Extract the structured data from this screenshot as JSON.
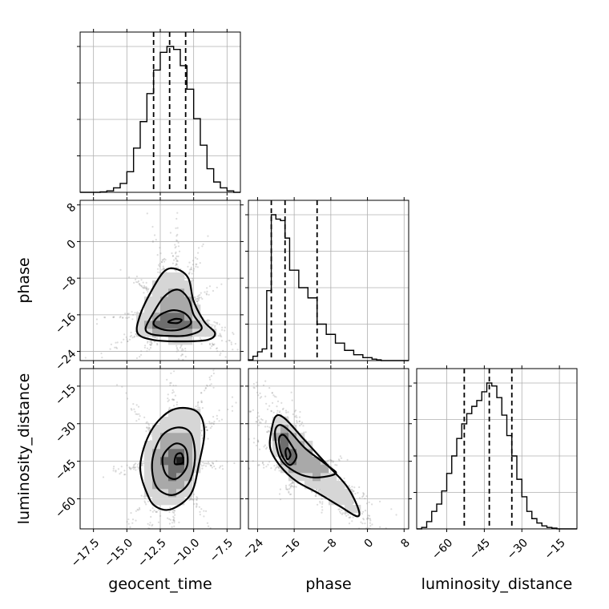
{
  "chart_data": {
    "type": "corner",
    "parameters": [
      "geocent_time",
      "phase",
      "luminosity_distance"
    ],
    "ranges": {
      "geocent_time": [
        -18.5,
        -6.5
      ],
      "phase": [
        -26,
        9
      ],
      "luminosity_distance": [
        -72,
        -8
      ]
    },
    "ticks": {
      "geocent_time": [
        -17.5,
        -15.0,
        -12.5,
        -10.0,
        -7.5
      ],
      "phase": [
        -24,
        -16,
        -8,
        0,
        8
      ],
      "luminosity_distance": [
        -60,
        -45,
        -30,
        -15
      ]
    },
    "tick_labels": {
      "geocent_time": [
        "−17.5",
        "−15.0",
        "−12.5",
        "−10.0",
        "−7.5"
      ],
      "phase": [
        "−24",
        "−16",
        "−8",
        "0",
        "8"
      ],
      "luminosity_distance": [
        "−60",
        "−45",
        "−30",
        "−15"
      ]
    },
    "quantiles": {
      "geocent_time": [
        -13.0,
        -11.8,
        -10.6
      ],
      "phase": [
        -21.0,
        -18.0,
        -11.0
      ],
      "luminosity_distance": [
        -53,
        -43,
        -34
      ]
    },
    "histograms": {
      "geocent_time": {
        "edges": [
          -18.5,
          -18.0,
          -17.5,
          -17.0,
          -16.5,
          -16.0,
          -15.5,
          -15.0,
          -14.5,
          -14.0,
          -13.5,
          -13.0,
          -12.5,
          -12.0,
          -11.5,
          -11.0,
          -10.5,
          -10.0,
          -9.5,
          -9.0,
          -8.5,
          -8.0,
          -7.5,
          -7.0,
          -6.5
        ],
        "counts": [
          0,
          0,
          0,
          0.003,
          0.01,
          0.03,
          0.06,
          0.14,
          0.3,
          0.48,
          0.67,
          0.83,
          0.95,
          0.99,
          0.97,
          0.86,
          0.7,
          0.5,
          0.32,
          0.16,
          0.07,
          0.03,
          0.01,
          0
        ]
      },
      "phase": {
        "edges": [
          -26,
          -25,
          -24,
          -23,
          -22,
          -21,
          -20,
          -19,
          -18,
          -17,
          -16,
          -15,
          -14,
          -13,
          -12,
          -11,
          -10,
          -9,
          -8,
          -7,
          -6,
          -5,
          -4,
          -3,
          -2,
          -1,
          0,
          1,
          2,
          3,
          4,
          5,
          6,
          7,
          8,
          9
        ],
        "counts": [
          0.005,
          0.03,
          0.06,
          0.08,
          0.48,
          1.0,
          0.97,
          0.96,
          0.84,
          0.62,
          0.62,
          0.5,
          0.5,
          0.43,
          0.43,
          0.25,
          0.25,
          0.18,
          0.18,
          0.12,
          0.12,
          0.07,
          0.07,
          0.04,
          0.04,
          0.02,
          0.02,
          0.01,
          0.005,
          0,
          0,
          0,
          0,
          0,
          0
        ]
      },
      "luminosity_distance": {
        "edges": [
          -72,
          -70,
          -68,
          -66,
          -64,
          -62,
          -60,
          -58,
          -56,
          -54,
          -52,
          -50,
          -48,
          -46,
          -44,
          -42,
          -40,
          -38,
          -36,
          -34,
          -32,
          -30,
          -28,
          -26,
          -24,
          -22,
          -20,
          -18,
          -16,
          -14,
          -12,
          -10,
          -8
        ],
        "counts": [
          0,
          0.01,
          0.05,
          0.12,
          0.17,
          0.26,
          0.38,
          0.5,
          0.62,
          0.72,
          0.79,
          0.84,
          0.88,
          0.94,
          1.0,
          0.98,
          0.9,
          0.78,
          0.64,
          0.5,
          0.34,
          0.22,
          0.12,
          0.07,
          0.04,
          0.02,
          0.01,
          0.005,
          0,
          0,
          0,
          0
        ]
      }
    },
    "joint": [
      {
        "x": "geocent_time",
        "y": "phase",
        "center": [
          -11.8,
          -17.5
        ],
        "contours": [
          [
            [
              -14.2,
              -20.0
            ],
            [
              -14.0,
              -16.0
            ],
            [
              -13.2,
              -11.0
            ],
            [
              -12.2,
              -6.5
            ],
            [
              -11.3,
              -6.0
            ],
            [
              -10.4,
              -8.0
            ],
            [
              -10.0,
              -13.0
            ],
            [
              -9.2,
              -17.5
            ],
            [
              -8.4,
              -20.0
            ],
            [
              -9.0,
              -21.5
            ],
            [
              -11.0,
              -21.8
            ],
            [
              -13.0,
              -21.5
            ]
          ],
          [
            [
              -13.6,
              -19.0
            ],
            [
              -13.1,
              -16.0
            ],
            [
              -12.2,
              -12.0
            ],
            [
              -11.2,
              -10.5
            ],
            [
              -10.4,
              -12.5
            ],
            [
              -10.0,
              -16.0
            ],
            [
              -9.4,
              -19.0
            ],
            [
              -10.5,
              -20.5
            ],
            [
              -12.0,
              -20.6
            ],
            [
              -13.2,
              -20.2
            ]
          ],
          [
            [
              -13.0,
              -18.0
            ],
            [
              -12.5,
              -16.0
            ],
            [
              -11.5,
              -15.0
            ],
            [
              -10.6,
              -15.8
            ],
            [
              -10.2,
              -17.8
            ],
            [
              -11.0,
              -19.2
            ],
            [
              -12.2,
              -19.3
            ]
          ],
          [
            [
              -11.9,
              -17.6
            ],
            [
              -11.4,
              -16.9
            ],
            [
              -10.9,
              -17.1
            ],
            [
              -11.2,
              -17.8
            ]
          ]
        ]
      },
      {
        "x": "geocent_time",
        "y": "luminosity_distance",
        "center": [
          -11.2,
          -44
        ],
        "contours": [
          [
            [
              -13.4,
              -59.0
            ],
            [
              -14.0,
              -47.0
            ],
            [
              -13.2,
              -33.0
            ],
            [
              -11.6,
              -24.5
            ],
            [
              -9.8,
              -25.0
            ],
            [
              -9.2,
              -33.0
            ],
            [
              -9.6,
              -46.0
            ],
            [
              -10.2,
              -58.0
            ],
            [
              -11.6,
              -64.0
            ],
            [
              -12.7,
              -63.5
            ]
          ],
          [
            [
              -12.8,
              -55.0
            ],
            [
              -13.1,
              -45.0
            ],
            [
              -12.4,
              -35.0
            ],
            [
              -11.2,
              -31.5
            ],
            [
              -10.2,
              -34.0
            ],
            [
              -9.9,
              -44.0
            ],
            [
              -10.4,
              -54.0
            ],
            [
              -11.6,
              -58.5
            ]
          ],
          [
            [
              -12.1,
              -50.0
            ],
            [
              -12.3,
              -43.0
            ],
            [
              -11.4,
              -38.0
            ],
            [
              -10.6,
              -40.0
            ],
            [
              -10.5,
              -47.0
            ],
            [
              -11.3,
              -52.0
            ]
          ],
          [
            [
              -11.4,
              -46.0
            ],
            [
              -11.3,
              -42.5
            ],
            [
              -10.9,
              -42.0
            ],
            [
              -10.8,
              -45.5
            ]
          ]
        ]
      },
      {
        "x": "phase",
        "y": "luminosity_distance",
        "center": [
          -17.5,
          -42
        ],
        "contours": [
          [
            [
              -21.0,
              -33.0
            ],
            [
              -20.0,
              -27.0
            ],
            [
              -18.0,
              -28.0
            ],
            [
              -14.0,
              -36.0
            ],
            [
              -9.0,
              -46.0
            ],
            [
              -4.5,
              -55.0
            ],
            [
              -2.0,
              -64.0
            ],
            [
              -2.3,
              -67.0
            ],
            [
              -6.0,
              -63.0
            ],
            [
              -11.0,
              -57.5
            ],
            [
              -15.5,
              -53.0
            ],
            [
              -19.0,
              -47.0
            ],
            [
              -21.2,
              -40.0
            ]
          ],
          [
            [
              -20.2,
              -34.0
            ],
            [
              -19.2,
              -30.5
            ],
            [
              -17.0,
              -33.0
            ],
            [
              -13.5,
              -40.0
            ],
            [
              -8.5,
              -47.0
            ],
            [
              -7.0,
              -50.0
            ],
            [
              -11.5,
              -51.5
            ],
            [
              -15.5,
              -49.5
            ],
            [
              -19.0,
              -44.0
            ]
          ],
          [
            [
              -19.3,
              -36.0
            ],
            [
              -18.3,
              -34.5
            ],
            [
              -16.8,
              -38.0
            ],
            [
              -15.5,
              -43.0
            ],
            [
              -17.0,
              -46.5
            ],
            [
              -18.8,
              -42.0
            ]
          ],
          [
            [
              -17.9,
              -41.0
            ],
            [
              -17.4,
              -39.8
            ],
            [
              -16.8,
              -42.5
            ],
            [
              -17.5,
              -44.2
            ]
          ]
        ]
      }
    ],
    "xlabels": [
      "geocent_time",
      "phase",
      "luminosity_distance"
    ],
    "ylabels": [
      "",
      "phase",
      "luminosity_distance"
    ],
    "grid": true
  }
}
